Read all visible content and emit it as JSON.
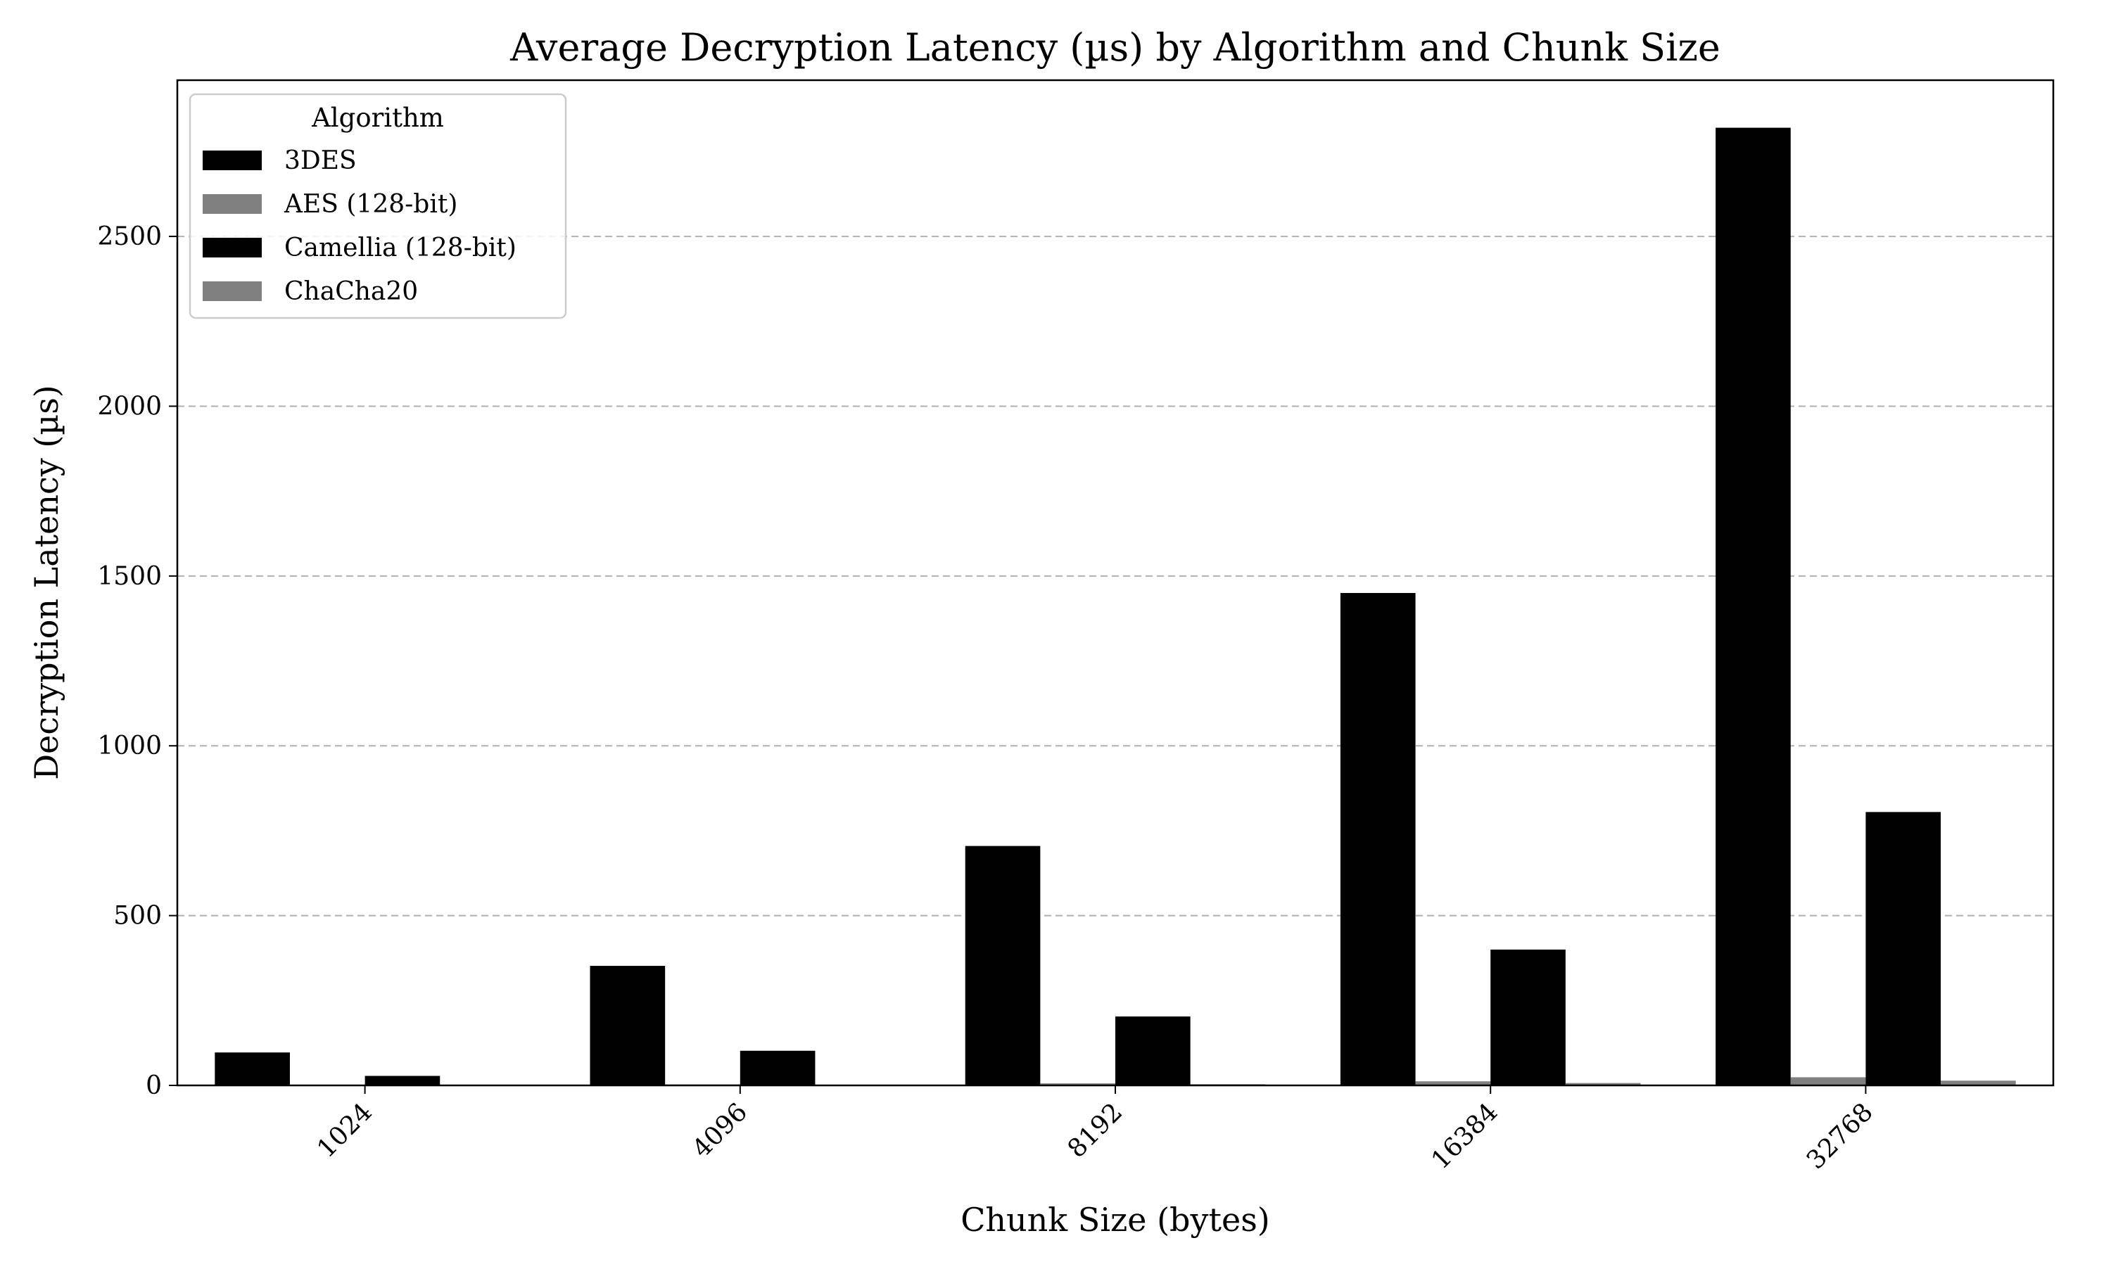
{
  "chart_data": {
    "type": "bar",
    "title": "Average Decryption Latency (µs) by Algorithm and Chunk Size",
    "xlabel": "Chunk Size (bytes)",
    "ylabel": "Decryption Latency (µs)",
    "categories": [
      "1024",
      "4096",
      "8192",
      "16384",
      "32768"
    ],
    "ylim": [
      0,
      2960
    ],
    "yticks": [
      0,
      500,
      1000,
      1500,
      2000,
      2500
    ],
    "grid": "y-dashed",
    "legend": {
      "title": "Algorithm",
      "placement": "top-left"
    },
    "series": [
      {
        "name": "3DES",
        "color": "#000000",
        "values": [
          97,
          352,
          705,
          1450,
          2820
        ]
      },
      {
        "name": "AES (128-bit)",
        "color": "#808080",
        "values": [
          1,
          3,
          6,
          12,
          24
        ]
      },
      {
        "name": "Camellia (128-bit)",
        "color": "#000000",
        "values": [
          28,
          102,
          203,
          400,
          805
        ]
      },
      {
        "name": "ChaCha20",
        "color": "#808080",
        "values": [
          0.5,
          2,
          3.5,
          7,
          14
        ]
      }
    ]
  }
}
